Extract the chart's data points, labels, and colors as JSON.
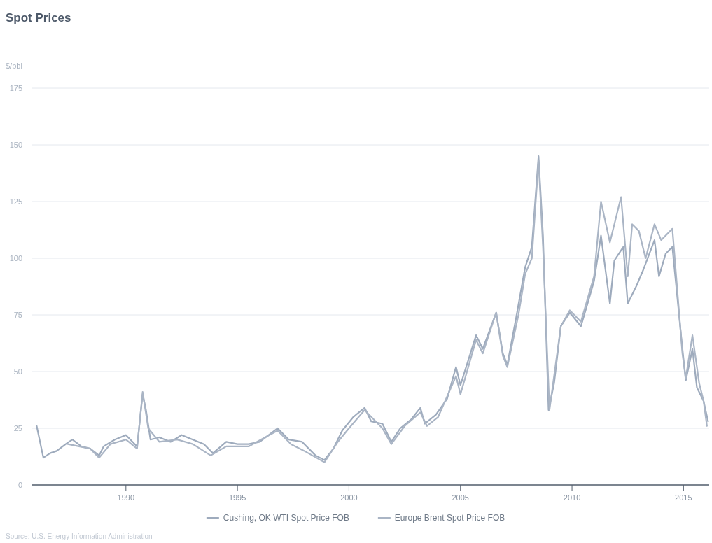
{
  "chart_data": {
    "type": "line",
    "title": "Spot Prices",
    "ylabel": "$/bbl",
    "annotations": [
      "Source: U.S. Energy Information Administration"
    ],
    "xlim": [
      1985.8,
      2016.15
    ],
    "xticks": [
      1990,
      1995,
      2000,
      2005,
      2010,
      2015
    ],
    "ylim": [
      0,
      175
    ],
    "yticks": [
      0,
      25,
      50,
      75,
      100,
      125,
      150,
      175
    ],
    "grid": "y",
    "legend": "bottom",
    "series": [
      {
        "name": "Cushing, OK WTI Spot Price FOB",
        "color": "#9eabbd",
        "x": [
          1986.0,
          1986.3,
          1986.6,
          1986.9,
          1987.3,
          1987.6,
          1988.0,
          1988.4,
          1988.8,
          1989.0,
          1989.5,
          1990.0,
          1990.5,
          1990.75,
          1990.9,
          1991.1,
          1991.5,
          1992.0,
          1992.5,
          1993.0,
          1993.5,
          1993.9,
          1994.5,
          1995.0,
          1995.5,
          1996.0,
          1996.8,
          1997.3,
          1997.9,
          1998.5,
          1998.9,
          1999.3,
          1999.7,
          2000.2,
          2000.7,
          2001.0,
          2001.5,
          2001.9,
          2002.3,
          2002.8,
          2003.2,
          2003.4,
          2003.9,
          2004.4,
          2004.8,
          2005.0,
          2005.7,
          2006.0,
          2006.6,
          2006.9,
          2007.1,
          2007.5,
          2007.9,
          2008.2,
          2008.5,
          2008.7,
          2008.95,
          2009.2,
          2009.5,
          2009.9,
          2010.4,
          2010.7,
          2010.99,
          2011.3,
          2011.7,
          2011.9,
          2012.3,
          2012.5,
          2012.9,
          2013.2,
          2013.7,
          2013.9,
          2014.2,
          2014.5,
          2014.9,
          2015.1,
          2015.4,
          2015.6,
          2015.9,
          2016.1
        ],
        "values": [
          26,
          12,
          14,
          15,
          18,
          20,
          17,
          16,
          13,
          17,
          20,
          22,
          17,
          40,
          33,
          20,
          21,
          19,
          22,
          20,
          18,
          14,
          19,
          18,
          18,
          19,
          25,
          20,
          19,
          13,
          11,
          16,
          24,
          30,
          34,
          28,
          27,
          19,
          25,
          29,
          34,
          27,
          31,
          38,
          52,
          44,
          66,
          60,
          76,
          58,
          53,
          74,
          96,
          105,
          145,
          110,
          33,
          45,
          70,
          76,
          70,
          80,
          90,
          110,
          80,
          99,
          105,
          80,
          88,
          95,
          108,
          92,
          102,
          105,
          65,
          46,
          60,
          43,
          37,
          28
        ]
      },
      {
        "name": "Europe Brent Spot Price FOB",
        "color": "#aab5c5",
        "x": [
          1987.4,
          1987.9,
          1988.4,
          1988.8,
          1989.3,
          1990.0,
          1990.5,
          1990.75,
          1991.0,
          1991.5,
          1992.3,
          1993.0,
          1993.8,
          1994.5,
          1995.5,
          1996.8,
          1997.4,
          1998.0,
          1998.9,
          1999.5,
          2000.0,
          2000.7,
          2001.5,
          2001.9,
          2002.5,
          2003.2,
          2003.5,
          2004.0,
          2004.8,
          2005.0,
          2005.7,
          2006.0,
          2006.6,
          2006.9,
          2007.1,
          2007.6,
          2007.9,
          2008.2,
          2008.5,
          2008.7,
          2008.99,
          2009.5,
          2009.9,
          2010.4,
          2010.99,
          2011.3,
          2011.7,
          2012.2,
          2012.5,
          2012.7,
          2013.0,
          2013.3,
          2013.7,
          2014.0,
          2014.5,
          2014.95,
          2015.1,
          2015.4,
          2015.7,
          2015.9,
          2016.05
        ],
        "values": [
          18,
          17,
          16,
          12,
          18,
          20,
          16,
          41,
          25,
          19,
          20,
          18,
          13,
          17,
          17,
          24,
          18,
          15,
          10,
          19,
          25,
          33,
          25,
          18,
          26,
          32,
          26,
          30,
          48,
          40,
          64,
          58,
          76,
          57,
          52,
          75,
          93,
          100,
          143,
          105,
          33,
          70,
          77,
          72,
          92,
          125,
          107,
          127,
          92,
          115,
          112,
          100,
          115,
          108,
          113,
          58,
          47,
          66,
          45,
          37,
          26
        ]
      }
    ]
  }
}
